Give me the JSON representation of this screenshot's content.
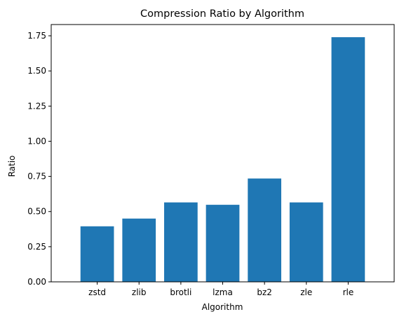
{
  "chart_data": {
    "type": "bar",
    "title": "Compression Ratio by Algorithm",
    "xlabel": "Algorithm",
    "ylabel": "Ratio",
    "categories": [
      "zstd",
      "zlib",
      "brotli",
      "lzma",
      "bz2",
      "zle",
      "rle"
    ],
    "values": [
      0.395,
      0.45,
      0.565,
      0.548,
      0.735,
      0.565,
      1.74
    ],
    "ylim": [
      0,
      1.83
    ],
    "yticks": [
      0.0,
      0.25,
      0.5,
      0.75,
      1.0,
      1.25,
      1.5,
      1.75
    ],
    "ytick_labels": [
      "0.00",
      "0.25",
      "0.50",
      "0.75",
      "1.00",
      "1.25",
      "1.50",
      "1.75"
    ],
    "bar_color": "#1f77b4",
    "grid": false,
    "legend": "none"
  }
}
